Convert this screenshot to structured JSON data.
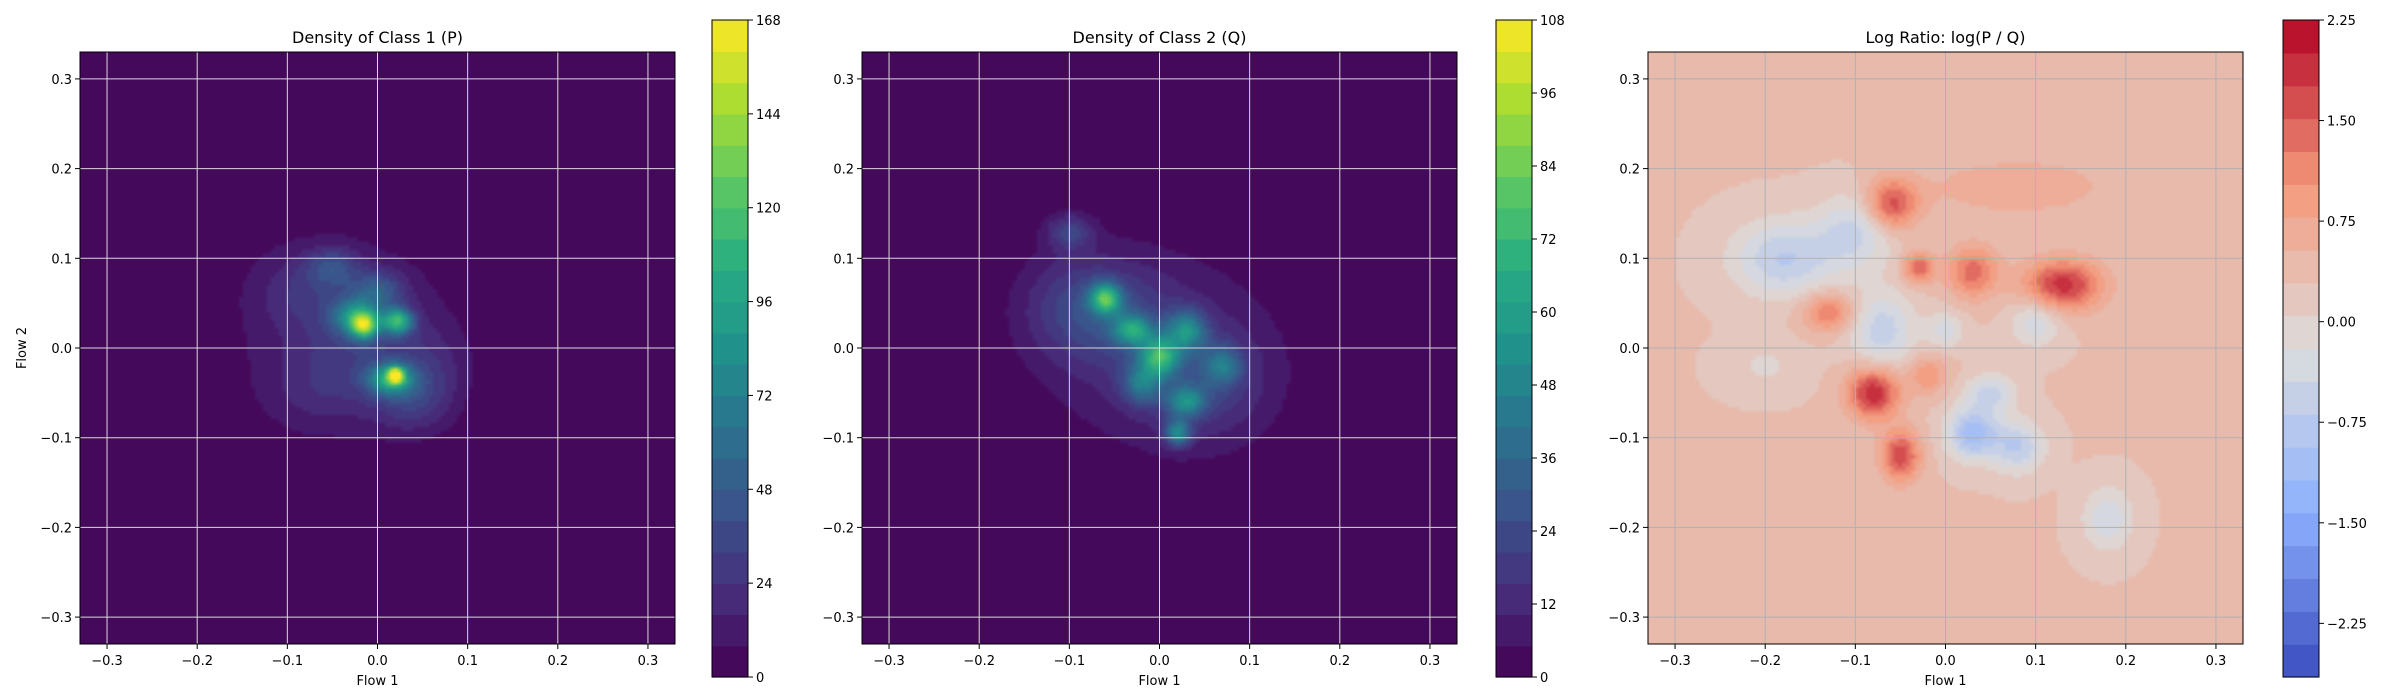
{
  "chart_data": [
    {
      "type": "heatmap",
      "plot_style": "filled-contour",
      "title": "Density of Class 1 (P)",
      "xlabel": "Flow 1",
      "ylabel": "Flow 2",
      "xlim": [
        -0.33,
        0.33
      ],
      "ylim": [
        -0.33,
        0.33
      ],
      "xticks": [
        "−0.3",
        "−0.2",
        "−0.1",
        "0.0",
        "0.1",
        "0.2",
        "0.3"
      ],
      "yticks": [
        "−0.3",
        "−0.2",
        "−0.1",
        "0.0",
        "0.1",
        "0.2",
        "0.3"
      ],
      "xtick_values": [
        -0.3,
        -0.2,
        -0.1,
        0.0,
        0.1,
        0.2,
        0.3
      ],
      "ytick_values": [
        -0.3,
        -0.2,
        -0.1,
        0.0,
        0.1,
        0.2,
        0.3
      ],
      "grid": true,
      "colormap": "viridis",
      "colorbar": {
        "min": 0,
        "max": 168,
        "ticks": [
          "0",
          "24",
          "48",
          "72",
          "96",
          "120",
          "144",
          "168"
        ],
        "tick_values": [
          0,
          24,
          48,
          72,
          96,
          120,
          144,
          168
        ]
      },
      "background_color": "#440154",
      "blobs": [
        {
          "x": -0.045,
          "y": 0.02,
          "sx": 0.085,
          "sy": 0.075,
          "v": 14
        },
        {
          "x": -0.01,
          "y": 0.0,
          "sx": 0.05,
          "sy": 0.05,
          "v": 16
        },
        {
          "x": -0.085,
          "y": 0.065,
          "sx": 0.035,
          "sy": 0.03,
          "v": 14
        },
        {
          "x": -0.05,
          "y": 0.09,
          "sx": 0.02,
          "sy": 0.015,
          "v": 30
        },
        {
          "x": -0.025,
          "y": 0.035,
          "sx": 0.018,
          "sy": 0.014,
          "v": 65
        },
        {
          "x": -0.015,
          "y": 0.025,
          "sx": 0.01,
          "sy": 0.01,
          "v": 100
        },
        {
          "x": 0.022,
          "y": 0.03,
          "sx": 0.012,
          "sy": 0.01,
          "v": 95
        },
        {
          "x": 0.015,
          "y": -0.035,
          "sx": 0.018,
          "sy": 0.012,
          "v": 80
        },
        {
          "x": 0.02,
          "y": -0.03,
          "sx": 0.006,
          "sy": 0.006,
          "v": 110
        },
        {
          "x": 0.0,
          "y": 0.065,
          "sx": 0.02,
          "sy": 0.015,
          "v": 35
        },
        {
          "x": 0.04,
          "y": -0.06,
          "sx": 0.03,
          "sy": 0.025,
          "v": 22
        },
        {
          "x": -0.07,
          "y": -0.05,
          "sx": 0.04,
          "sy": 0.03,
          "v": 10
        },
        {
          "x": 0.06,
          "y": -0.02,
          "sx": 0.03,
          "sy": 0.03,
          "v": 12
        }
      ]
    },
    {
      "type": "heatmap",
      "plot_style": "filled-contour",
      "title": "Density of Class 2 (Q)",
      "xlabel": "Flow 1",
      "ylabel": "",
      "xlim": [
        -0.33,
        0.33
      ],
      "ylim": [
        -0.33,
        0.33
      ],
      "xticks": [
        "−0.3",
        "−0.2",
        "−0.1",
        "0.0",
        "0.1",
        "0.2",
        "0.3"
      ],
      "yticks": [
        "−0.3",
        "−0.2",
        "−0.1",
        "0.0",
        "0.1",
        "0.2",
        "0.3"
      ],
      "xtick_values": [
        -0.3,
        -0.2,
        -0.1,
        0.0,
        0.1,
        0.2,
        0.3
      ],
      "ytick_values": [
        -0.3,
        -0.2,
        -0.1,
        0.0,
        0.1,
        0.2,
        0.3
      ],
      "grid": true,
      "colormap": "viridis",
      "colorbar": {
        "min": 0,
        "max": 108,
        "ticks": [
          "0",
          "12",
          "24",
          "36",
          "48",
          "60",
          "72",
          "84",
          "96",
          "108"
        ],
        "tick_values": [
          0,
          12,
          24,
          36,
          48,
          60,
          72,
          84,
          96,
          108
        ]
      },
      "background_color": "#440154",
      "blobs": [
        {
          "x": -0.005,
          "y": 0.0,
          "sx": 0.09,
          "sy": 0.075,
          "v": 12
        },
        {
          "x": -0.06,
          "y": 0.04,
          "sx": 0.05,
          "sy": 0.04,
          "v": 14
        },
        {
          "x": 0.05,
          "y": -0.04,
          "sx": 0.05,
          "sy": 0.045,
          "v": 14
        },
        {
          "x": -0.1,
          "y": 0.05,
          "sx": 0.04,
          "sy": 0.04,
          "v": 9
        },
        {
          "x": -0.1,
          "y": 0.13,
          "sx": 0.018,
          "sy": 0.014,
          "v": 20
        },
        {
          "x": -0.06,
          "y": 0.055,
          "sx": 0.012,
          "sy": 0.012,
          "v": 60
        },
        {
          "x": -0.03,
          "y": 0.02,
          "sx": 0.015,
          "sy": 0.012,
          "v": 45
        },
        {
          "x": 0.0,
          "y": -0.01,
          "sx": 0.015,
          "sy": 0.015,
          "v": 55
        },
        {
          "x": 0.03,
          "y": 0.02,
          "sx": 0.015,
          "sy": 0.015,
          "v": 40
        },
        {
          "x": 0.03,
          "y": -0.06,
          "sx": 0.015,
          "sy": 0.012,
          "v": 38
        },
        {
          "x": 0.02,
          "y": -0.095,
          "sx": 0.01,
          "sy": 0.01,
          "v": 42
        },
        {
          "x": -0.02,
          "y": -0.04,
          "sx": 0.015,
          "sy": 0.015,
          "v": 30
        },
        {
          "x": 0.07,
          "y": -0.02,
          "sx": 0.015,
          "sy": 0.015,
          "v": 28
        }
      ]
    },
    {
      "type": "heatmap",
      "plot_style": "filled-contour",
      "title": "Log Ratio: log(P / Q)",
      "xlabel": "Flow 1",
      "ylabel": "",
      "xlim": [
        -0.33,
        0.33
      ],
      "ylim": [
        -0.33,
        0.33
      ],
      "xticks": [
        "−0.3",
        "−0.2",
        "−0.1",
        "0.0",
        "0.1",
        "0.2",
        "0.3"
      ],
      "yticks": [
        "−0.3",
        "−0.2",
        "−0.1",
        "0.0",
        "0.1",
        "0.2",
        "0.3"
      ],
      "xtick_values": [
        -0.3,
        -0.2,
        -0.1,
        0.0,
        0.1,
        0.2,
        0.3
      ],
      "ytick_values": [
        -0.3,
        -0.2,
        -0.1,
        0.0,
        0.1,
        0.2,
        0.3
      ],
      "grid": true,
      "colormap": "coolwarm",
      "colorbar": {
        "min": -2.65,
        "max": 2.25,
        "ticks": [
          "−2.25",
          "−1.50",
          "−0.75",
          "0.00",
          "0.75",
          "1.50",
          "2.25"
        ],
        "tick_values": [
          -2.25,
          -1.5,
          -0.75,
          0.0,
          0.75,
          1.5,
          2.25
        ]
      },
      "background_value": 0.3,
      "blobs": [
        {
          "x": -0.06,
          "y": 0.16,
          "sx": 0.02,
          "sy": 0.02,
          "v": 1.4
        },
        {
          "x": 0.13,
          "y": 0.07,
          "sx": 0.03,
          "sy": 0.02,
          "v": 1.6
        },
        {
          "x": -0.08,
          "y": -0.05,
          "sx": 0.02,
          "sy": 0.02,
          "v": 1.7
        },
        {
          "x": -0.05,
          "y": -0.12,
          "sx": 0.015,
          "sy": 0.02,
          "v": 1.4
        },
        {
          "x": -0.13,
          "y": 0.04,
          "sx": 0.02,
          "sy": 0.015,
          "v": 1.0
        },
        {
          "x": 0.03,
          "y": 0.085,
          "sx": 0.02,
          "sy": 0.02,
          "v": 1.1
        },
        {
          "x": -0.03,
          "y": 0.09,
          "sx": 0.012,
          "sy": 0.012,
          "v": 1.2
        },
        {
          "x": 0.08,
          "y": 0.18,
          "sx": 0.08,
          "sy": 0.025,
          "v": 0.4
        },
        {
          "x": -0.18,
          "y": 0.1,
          "sx": 0.04,
          "sy": 0.03,
          "v": -1.0
        },
        {
          "x": -0.1,
          "y": 0.13,
          "sx": 0.03,
          "sy": 0.03,
          "v": -0.8
        },
        {
          "x": -0.07,
          "y": 0.02,
          "sx": 0.025,
          "sy": 0.03,
          "v": -0.9
        },
        {
          "x": 0.03,
          "y": -0.095,
          "sx": 0.02,
          "sy": 0.02,
          "v": -1.4
        },
        {
          "x": 0.08,
          "y": -0.11,
          "sx": 0.02,
          "sy": 0.02,
          "v": -1.0
        },
        {
          "x": 0.18,
          "y": -0.19,
          "sx": 0.02,
          "sy": 0.025,
          "v": -0.7
        },
        {
          "x": 0.1,
          "y": 0.03,
          "sx": 0.02,
          "sy": 0.02,
          "v": -0.7
        },
        {
          "x": 0.05,
          "y": -0.05,
          "sx": 0.02,
          "sy": 0.015,
          "v": -0.8
        },
        {
          "x": 0.0,
          "y": 0.02,
          "sx": 0.015,
          "sy": 0.015,
          "v": -0.6
        },
        {
          "x": -0.02,
          "y": -0.03,
          "sx": 0.015,
          "sy": 0.015,
          "v": 0.7
        },
        {
          "x": -0.2,
          "y": -0.02,
          "sx": 0.03,
          "sy": 0.02,
          "v": -0.3
        }
      ]
    }
  ]
}
